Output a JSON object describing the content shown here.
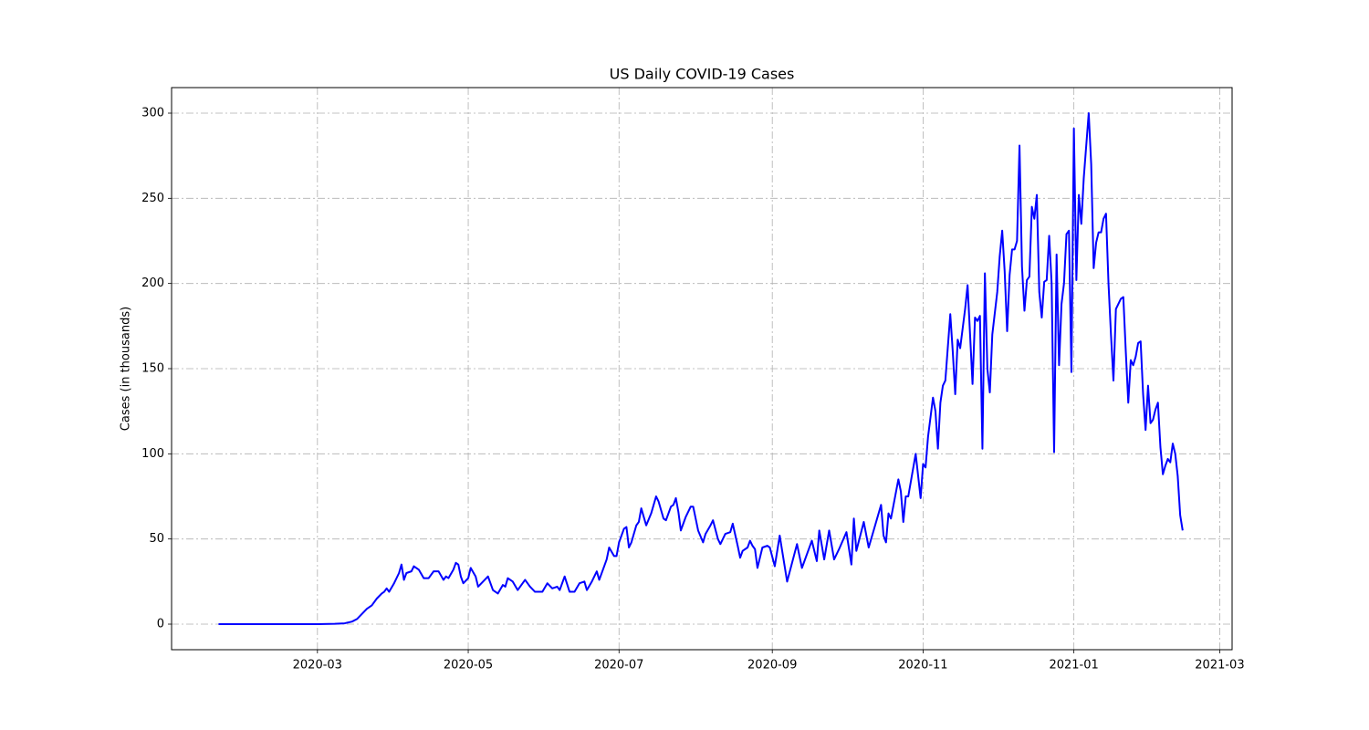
{
  "chart_data": {
    "type": "line",
    "title": "US Daily COVID-19 Cases",
    "y_label": "Cases (in thousands)",
    "xlim": [
      "2020-01-02",
      "2021-03-06"
    ],
    "xticks": [
      {
        "value": "2020-03-01",
        "label": "2020-03"
      },
      {
        "value": "2020-05-01",
        "label": "2020-05"
      },
      {
        "value": "2020-07-01",
        "label": "2020-07"
      },
      {
        "value": "2020-09-01",
        "label": "2020-09"
      },
      {
        "value": "2020-11-01",
        "label": "2020-11"
      },
      {
        "value": "2021-01-01",
        "label": "2021-01"
      },
      {
        "value": "2021-03-01",
        "label": "2021-03"
      }
    ],
    "ylim": [
      -15,
      315
    ],
    "yticks": [
      0,
      50,
      100,
      150,
      200,
      250,
      300
    ],
    "grid": true,
    "x": [
      "2020-01-21",
      "2020-02-15",
      "2020-03-01",
      "2020-03-08",
      "2020-03-12",
      "2020-03-15",
      "2020-03-17",
      "2020-03-19",
      "2020-03-21",
      "2020-03-23",
      "2020-03-25",
      "2020-03-27",
      "2020-03-28",
      "2020-03-29",
      "2020-03-30",
      "2020-04-01",
      "2020-04-03",
      "2020-04-04",
      "2020-04-05",
      "2020-04-06",
      "2020-04-08",
      "2020-04-09",
      "2020-04-11",
      "2020-04-13",
      "2020-04-15",
      "2020-04-17",
      "2020-04-19",
      "2020-04-21",
      "2020-04-22",
      "2020-04-23",
      "2020-04-25",
      "2020-04-26",
      "2020-04-27",
      "2020-04-28",
      "2020-04-29",
      "2020-05-01",
      "2020-05-02",
      "2020-05-04",
      "2020-05-05",
      "2020-05-07",
      "2020-05-09",
      "2020-05-11",
      "2020-05-13",
      "2020-05-15",
      "2020-05-16",
      "2020-05-17",
      "2020-05-19",
      "2020-05-21",
      "2020-05-22",
      "2020-05-24",
      "2020-05-26",
      "2020-05-28",
      "2020-05-31",
      "2020-06-02",
      "2020-06-04",
      "2020-06-06",
      "2020-06-07",
      "2020-06-09",
      "2020-06-11",
      "2020-06-13",
      "2020-06-15",
      "2020-06-17",
      "2020-06-18",
      "2020-06-20",
      "2020-06-22",
      "2020-06-23",
      "2020-06-25",
      "2020-06-26",
      "2020-06-27",
      "2020-06-29",
      "2020-06-30",
      "2020-07-01",
      "2020-07-03",
      "2020-07-04",
      "2020-07-05",
      "2020-07-06",
      "2020-07-08",
      "2020-07-09",
      "2020-07-10",
      "2020-07-12",
      "2020-07-14",
      "2020-07-16",
      "2020-07-17",
      "2020-07-19",
      "2020-07-20",
      "2020-07-22",
      "2020-07-23",
      "2020-07-24",
      "2020-07-25",
      "2020-07-26",
      "2020-07-28",
      "2020-07-30",
      "2020-07-31",
      "2020-08-02",
      "2020-08-04",
      "2020-08-05",
      "2020-08-07",
      "2020-08-08",
      "2020-08-10",
      "2020-08-11",
      "2020-08-13",
      "2020-08-15",
      "2020-08-16",
      "2020-08-18",
      "2020-08-19",
      "2020-08-20",
      "2020-08-22",
      "2020-08-23",
      "2020-08-24",
      "2020-08-25",
      "2020-08-26",
      "2020-08-28",
      "2020-08-30",
      "2020-08-31",
      "2020-09-02",
      "2020-09-04",
      "2020-09-07",
      "2020-09-11",
      "2020-09-13",
      "2020-09-17",
      "2020-09-19",
      "2020-09-20",
      "2020-09-22",
      "2020-09-24",
      "2020-09-26",
      "2020-09-28",
      "2020-10-01",
      "2020-10-03",
      "2020-10-04",
      "2020-10-05",
      "2020-10-08",
      "2020-10-10",
      "2020-10-15",
      "2020-10-16",
      "2020-10-17",
      "2020-10-18",
      "2020-10-19",
      "2020-10-22",
      "2020-10-23",
      "2020-10-24",
      "2020-10-25",
      "2020-10-26",
      "2020-10-29",
      "2020-10-31",
      "2020-11-01",
      "2020-11-02",
      "2020-11-03",
      "2020-11-05",
      "2020-11-06",
      "2020-11-07",
      "2020-11-08",
      "2020-11-09",
      "2020-11-10",
      "2020-11-12",
      "2020-11-13",
      "2020-11-14",
      "2020-11-15",
      "2020-11-16",
      "2020-11-18",
      "2020-11-19",
      "2020-11-20",
      "2020-11-21",
      "2020-11-22",
      "2020-11-23",
      "2020-11-24",
      "2020-11-25",
      "2020-11-26",
      "2020-11-27",
      "2020-11-28",
      "2020-11-29",
      "2020-12-01",
      "2020-12-02",
      "2020-12-03",
      "2020-12-04",
      "2020-12-05",
      "2020-12-06",
      "2020-12-07",
      "2020-12-08",
      "2020-12-09",
      "2020-12-10",
      "2020-12-11",
      "2020-12-12",
      "2020-12-13",
      "2020-12-14",
      "2020-12-15",
      "2020-12-16",
      "2020-12-17",
      "2020-12-18",
      "2020-12-19",
      "2020-12-20",
      "2020-12-21",
      "2020-12-22",
      "2020-12-23",
      "2020-12-24",
      "2020-12-25",
      "2020-12-26",
      "2020-12-27",
      "2020-12-28",
      "2020-12-29",
      "2020-12-30",
      "2020-12-31",
      "2021-01-01",
      "2021-01-02",
      "2021-01-03",
      "2021-01-04",
      "2021-01-05",
      "2021-01-07",
      "2021-01-08",
      "2021-01-09",
      "2021-01-10",
      "2021-01-11",
      "2021-01-12",
      "2021-01-13",
      "2021-01-14",
      "2021-01-15",
      "2021-01-16",
      "2021-01-17",
      "2021-01-18",
      "2021-01-19",
      "2021-01-20",
      "2021-01-21",
      "2021-01-22",
      "2021-01-23",
      "2021-01-24",
      "2021-01-25",
      "2021-01-26",
      "2021-01-27",
      "2021-01-28",
      "2021-01-29",
      "2021-01-30",
      "2021-01-31",
      "2021-02-01",
      "2021-02-02",
      "2021-02-03",
      "2021-02-04",
      "2021-02-05",
      "2021-02-06",
      "2021-02-07",
      "2021-02-08",
      "2021-02-09",
      "2021-02-10",
      "2021-02-11",
      "2021-02-12",
      "2021-02-13",
      "2021-02-14"
    ],
    "series": [
      {
        "name": "Cases",
        "color": "#0000ff",
        "values": [
          0,
          0,
          0,
          0.2,
          0.5,
          1.5,
          3,
          6,
          9,
          11,
          15,
          18,
          19,
          21,
          19,
          24,
          30,
          35,
          26,
          30,
          31,
          34,
          32,
          27,
          27,
          31,
          31,
          26,
          28,
          27,
          32,
          36,
          35,
          28,
          24,
          27,
          33,
          28,
          22,
          25,
          28,
          20,
          18,
          23,
          22,
          27,
          25,
          20,
          22,
          26,
          22,
          19,
          19,
          24,
          21,
          22,
          20,
          28,
          19,
          19,
          24,
          25,
          20,
          25,
          31,
          26,
          34,
          38,
          45,
          40,
          40,
          48,
          56,
          57,
          45,
          48,
          58,
          60,
          68,
          58,
          65,
          75,
          72,
          62,
          61,
          69,
          70,
          74,
          66,
          55,
          63,
          69,
          69,
          55,
          48,
          53,
          58,
          61,
          50,
          47,
          53,
          54,
          59,
          46,
          39,
          43,
          45,
          49,
          46,
          44,
          33,
          45,
          46,
          45,
          34,
          52,
          25,
          47,
          33,
          49,
          37,
          55,
          38,
          55,
          38,
          44,
          54,
          35,
          62,
          43,
          60,
          45,
          70,
          52,
          48,
          65,
          62,
          85,
          78,
          60,
          75,
          75,
          100,
          74,
          94,
          92,
          110,
          133,
          125,
          103,
          130,
          140,
          143,
          182,
          160,
          135,
          167,
          162,
          185,
          199,
          170,
          141,
          180,
          178,
          181,
          103,
          206,
          150,
          136,
          170,
          195,
          216,
          231,
          207,
          172,
          205,
          220,
          220,
          225,
          281,
          210,
          184,
          202,
          204,
          245,
          238,
          252,
          195,
          180,
          201,
          202,
          228,
          200,
          101,
          217,
          152,
          188,
          200,
          229,
          231,
          148,
          291,
          202,
          252,
          235,
          262,
          300,
          270,
          209,
          224,
          230,
          230,
          238,
          241,
          200,
          170,
          143,
          185,
          188,
          191,
          192,
          160,
          130,
          155,
          152,
          157,
          165,
          166,
          135,
          114,
          140,
          118,
          120,
          126,
          130,
          104,
          88,
          93,
          97,
          95,
          106,
          100,
          87,
          64,
          55
        ]
      }
    ]
  }
}
